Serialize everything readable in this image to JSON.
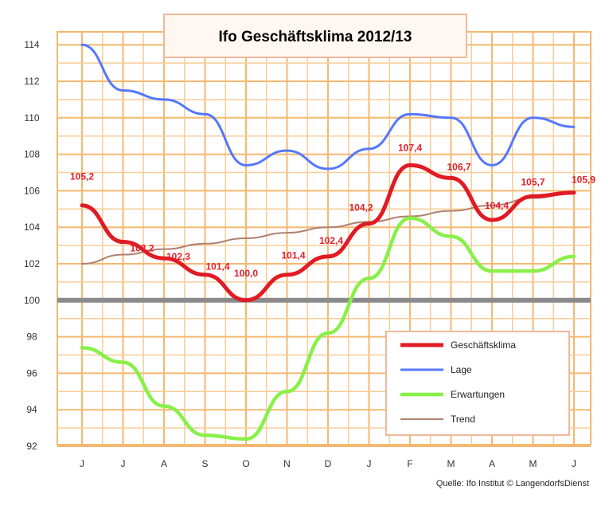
{
  "chart_data": {
    "type": "line",
    "title": "Ifo Geschäftsklima 2012/13",
    "source": "Quelle: Ifo Institut © LangendorfsDienst",
    "categories": [
      "J",
      "J",
      "A",
      "S",
      "O",
      "N",
      "D",
      "J",
      "F",
      "M",
      "A",
      "M",
      "J"
    ],
    "ylim": [
      92,
      115
    ],
    "yticks": [
      "92",
      "94",
      "96",
      "98",
      "100",
      "102",
      "104",
      "106",
      "108",
      "110",
      "112",
      "114"
    ],
    "reference_line": 100,
    "grid": true,
    "legend_position": "bottom-right",
    "series": [
      {
        "name": "Geschäftsklima",
        "color": "#e01b24",
        "values": [
          105.2,
          103.2,
          102.3,
          101.4,
          100.0,
          101.4,
          102.4,
          104.2,
          107.4,
          106.7,
          104.4,
          105.7,
          105.9
        ],
        "data_labels": [
          "105,2",
          "103,2",
          "102,3",
          "101,4",
          "100,0",
          "101,4",
          "102,4",
          "104,2",
          "107,4",
          "106,7",
          "104,4",
          "105,7",
          "105,9"
        ]
      },
      {
        "name": "Lage",
        "color": "#5577ff",
        "values": [
          114.0,
          111.5,
          111.0,
          110.2,
          107.4,
          108.2,
          107.2,
          108.3,
          110.2,
          110.0,
          107.4,
          110.0,
          109.5
        ]
      },
      {
        "name": "Erwartungen",
        "color": "#88f048",
        "values": [
          97.4,
          96.6,
          94.2,
          92.6,
          92.4,
          95.0,
          98.2,
          101.2,
          104.5,
          103.5,
          101.6,
          101.6,
          102.4
        ]
      },
      {
        "name": "Trend",
        "color": "#b08070",
        "values": [
          102.0,
          102.5,
          102.8,
          103.1,
          103.4,
          103.7,
          104.0,
          104.3,
          104.6,
          104.9,
          105.2,
          105.6,
          105.9
        ]
      }
    ]
  }
}
